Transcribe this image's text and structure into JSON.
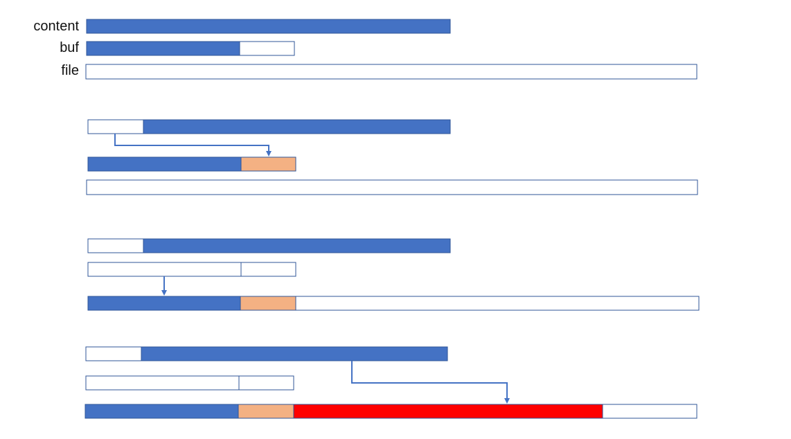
{
  "labels": {
    "content": "content",
    "buf": "buf",
    "file": "file"
  },
  "colors": {
    "blue": "#4472C4",
    "orange": "#F4B183",
    "red": "#FF0000",
    "outline": "#2F5597",
    "arrow": "#4472C4"
  },
  "steps": [
    {
      "id": "initial"
    },
    {
      "id": "copy-content-to-buf"
    },
    {
      "id": "flush-buf-to-file"
    },
    {
      "id": "write-rest-to-file"
    }
  ]
}
